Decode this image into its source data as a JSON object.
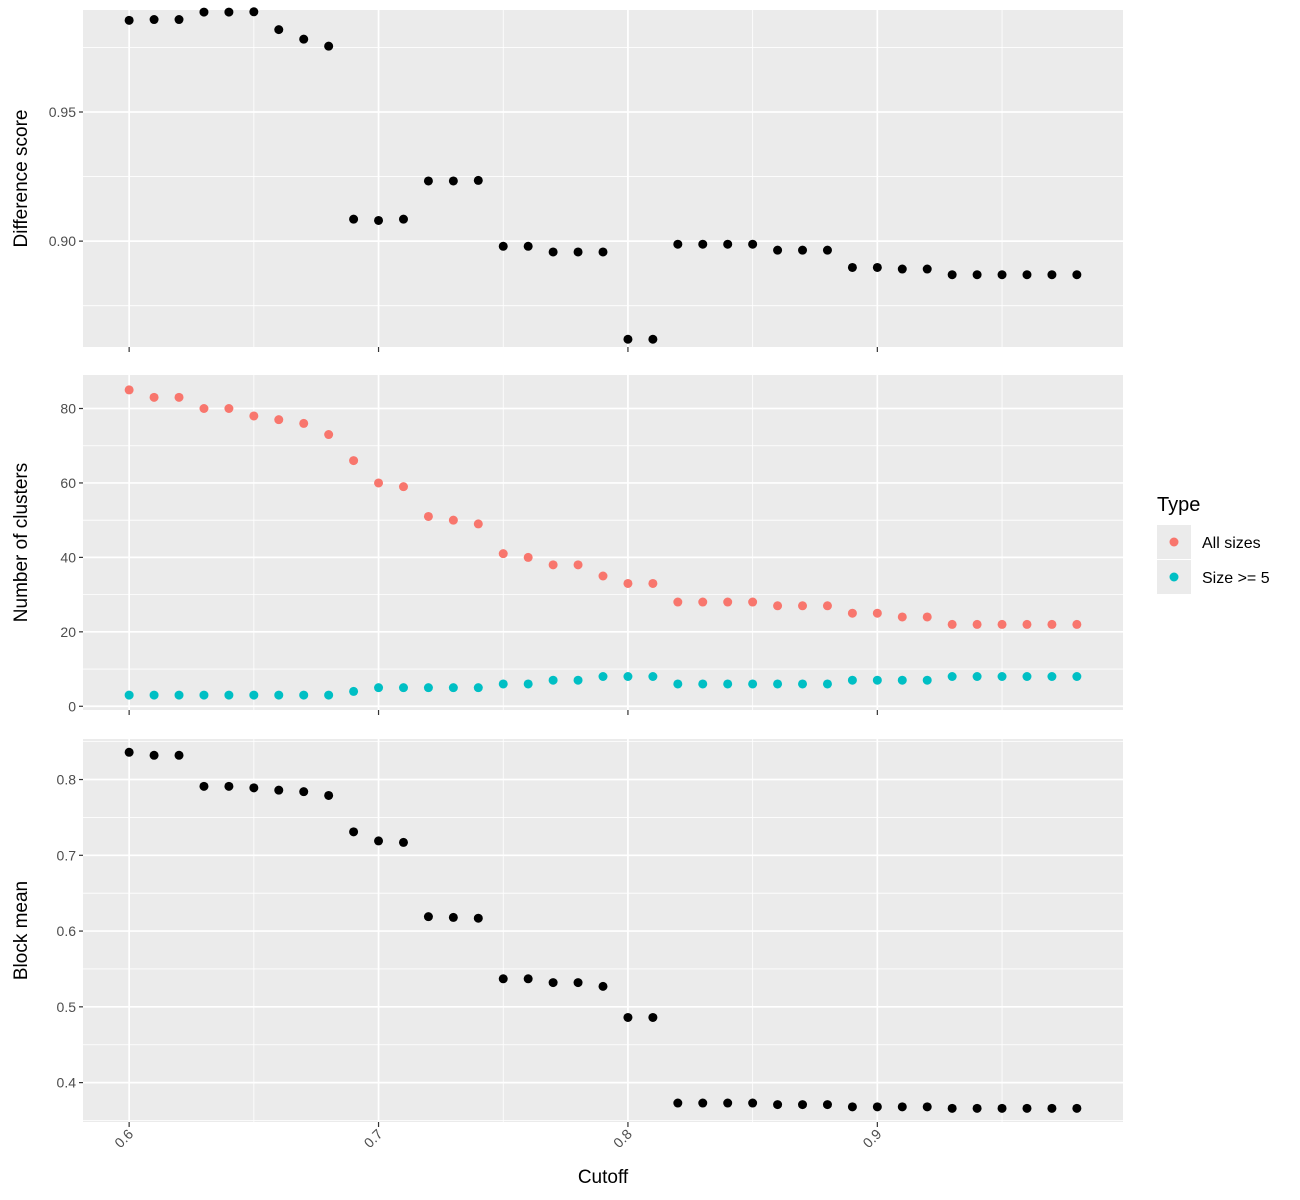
{
  "chart_data": {
    "type": "scatter",
    "xlabel": "Cutoff",
    "x_ticks": [
      "0.6",
      "0.7",
      "0.8",
      "0.9"
    ],
    "x": [
      0.6,
      0.61,
      0.62,
      0.63,
      0.64,
      0.65,
      0.66,
      0.67,
      0.68,
      0.69,
      0.7,
      0.71,
      0.72,
      0.73,
      0.74,
      0.75,
      0.76,
      0.77,
      0.78,
      0.79,
      0.8,
      0.81,
      0.82,
      0.83,
      0.84,
      0.85,
      0.86,
      0.87,
      0.88,
      0.89,
      0.9,
      0.91,
      0.92,
      0.93,
      0.94,
      0.95,
      0.96,
      0.97,
      0.98
    ],
    "xlim": [
      0.5815,
      0.9985
    ],
    "grid": true,
    "facets": [
      {
        "ylabel": "Difference score",
        "ylim": [
          0.859,
          0.9895
        ],
        "y_ticks": [
          {
            "value": 0.9,
            "label": "0.90"
          },
          {
            "value": 0.95,
            "label": "0.95"
          }
        ],
        "minor_y": [
          0.875,
          0.925,
          0.975
        ],
        "series": [
          {
            "name": "",
            "color": "#000000",
            "values": [
              0.9855,
              0.9858,
              0.9858,
              0.9887,
              0.9887,
              0.9888,
              0.9819,
              0.9782,
              0.9755,
              0.9085,
              0.908,
              0.9085,
              0.9233,
              0.9233,
              0.9235,
              0.898,
              0.898,
              0.8958,
              0.8958,
              0.8958,
              0.862,
              0.862,
              0.8988,
              0.8988,
              0.8988,
              0.8988,
              0.8965,
              0.8965,
              0.8965,
              0.8898,
              0.8898,
              0.8892,
              0.8892,
              0.887,
              0.887,
              0.887,
              0.887,
              0.887,
              0.887
            ]
          }
        ]
      },
      {
        "ylabel": "Number of clusters",
        "ylim": [
          -1.0,
          89.0
        ],
        "y_ticks": [
          {
            "value": 0,
            "label": "0"
          },
          {
            "value": 20,
            "label": "20"
          },
          {
            "value": 40,
            "label": "40"
          },
          {
            "value": 60,
            "label": "60"
          },
          {
            "value": 80,
            "label": "80"
          }
        ],
        "minor_y": [
          10,
          30,
          50,
          70
        ],
        "series": [
          {
            "name": "All sizes",
            "color": "#F8766D",
            "values": [
              85,
              83,
              83,
              80,
              80,
              78,
              77,
              76,
              73,
              66,
              60,
              59,
              51,
              50,
              49,
              41,
              40,
              38,
              38,
              35,
              33,
              33,
              28,
              28,
              28,
              28,
              27,
              27,
              27,
              25,
              25,
              24,
              24,
              22,
              22,
              22,
              22,
              22,
              22
            ]
          },
          {
            "name": "Size >= 5",
            "color": "#00BFC4",
            "values": [
              3,
              3,
              3,
              3,
              3,
              3,
              3,
              3,
              3,
              4,
              5,
              5,
              5,
              5,
              5,
              6,
              6,
              7,
              7,
              8,
              8,
              8,
              6,
              6,
              6,
              6,
              6,
              6,
              6,
              7,
              7,
              7,
              7,
              8,
              8,
              8,
              8,
              8,
              8
            ]
          }
        ]
      },
      {
        "ylabel": "Block mean",
        "ylim": [
          0.348,
          0.8535
        ],
        "y_ticks": [
          {
            "value": 0.4,
            "label": "0.4"
          },
          {
            "value": 0.5,
            "label": "0.5"
          },
          {
            "value": 0.6,
            "label": "0.6"
          },
          {
            "value": 0.7,
            "label": "0.7"
          },
          {
            "value": 0.8,
            "label": "0.8"
          }
        ],
        "minor_y": [
          0.35,
          0.45,
          0.55,
          0.65,
          0.75,
          0.85
        ],
        "series": [
          {
            "name": "",
            "color": "#000000",
            "values": [
              0.836,
              0.832,
              0.832,
              0.791,
              0.791,
              0.789,
              0.786,
              0.784,
              0.779,
              0.731,
              0.719,
              0.717,
              0.619,
              0.618,
              0.617,
              0.537,
              0.537,
              0.532,
              0.532,
              0.527,
              0.486,
              0.486,
              0.373,
              0.373,
              0.373,
              0.373,
              0.371,
              0.371,
              0.371,
              0.368,
              0.368,
              0.368,
              0.368,
              0.366,
              0.366,
              0.366,
              0.366,
              0.366,
              0.366
            ]
          }
        ]
      }
    ],
    "legend": {
      "title": "Type",
      "position": "right",
      "items": [
        {
          "label": "All sizes",
          "color": "#F8766D"
        },
        {
          "label": "Size >= 5",
          "color": "#00BFC4"
        }
      ]
    }
  }
}
